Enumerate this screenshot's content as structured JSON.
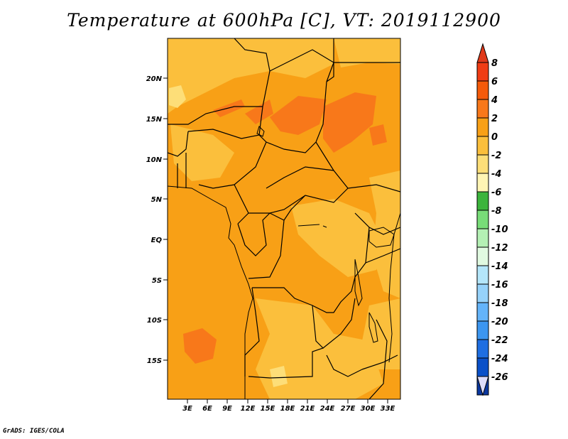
{
  "title": "Temperature at 600hPa [C], VT: 2019112900",
  "credit": "GrADS: IGES/COLA",
  "map": {
    "lat_labels": [
      "20N",
      "15N",
      "10N",
      "5N",
      "EQ",
      "5S",
      "10S",
      "15S"
    ],
    "lon_labels": [
      "3E",
      "6E",
      "9E",
      "12E",
      "15E",
      "18E",
      "21E",
      "24E",
      "27E",
      "30E",
      "33E"
    ]
  },
  "colorbar": {
    "labels": [
      "8",
      "6",
      "4",
      "2",
      "0",
      "-2",
      "-4",
      "-6",
      "-8",
      "-10",
      "-12",
      "-14",
      "-16",
      "-18",
      "-20",
      "-22",
      "-24",
      "-26"
    ],
    "colors": [
      "#f03c14",
      "#f55a0a",
      "#f8781a",
      "#f8a016",
      "#fbbf3c",
      "#fdde78",
      "#fff5b4",
      "#3cb43c",
      "#78dc78",
      "#b4f0b4",
      "#e1fae1",
      "#b4e6fa",
      "#96d2fa",
      "#64b4fa",
      "#3c96f0",
      "#1e6ee1",
      "#0a50c8",
      "#0a37a0"
    ],
    "over_color": "#e0391a",
    "under_color": "#dcdcfa"
  },
  "field_colors": {
    "base": "#f8a016",
    "warm": "#f8781a",
    "cool": "#fbbf3c",
    "cooler": "#fdde78"
  }
}
